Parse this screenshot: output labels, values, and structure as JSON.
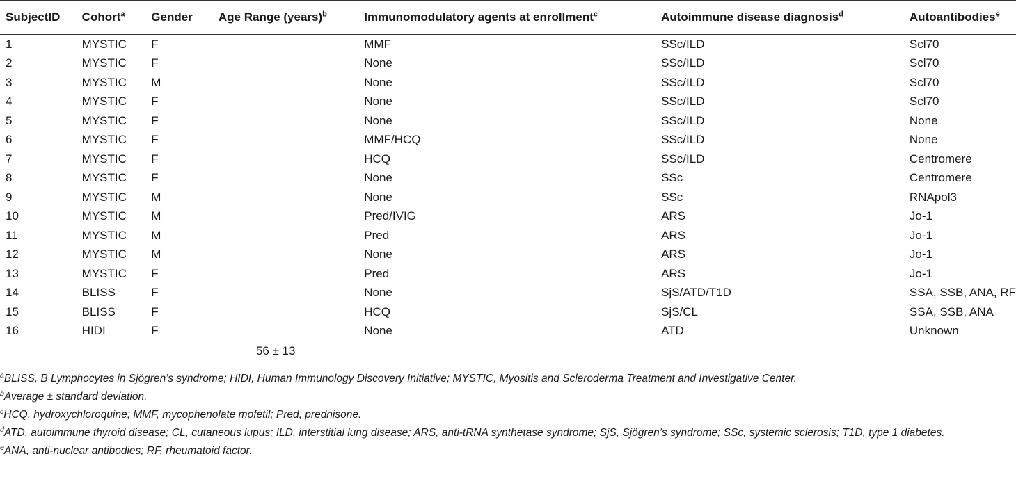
{
  "table": {
    "headers": [
      {
        "label": "SubjectID",
        "sup": ""
      },
      {
        "label": "Cohort",
        "sup": "a"
      },
      {
        "label": "Gender",
        "sup": ""
      },
      {
        "label": "Age Range (years)",
        "sup": "b"
      },
      {
        "label": "Immunomodulatory agents at enrollment",
        "sup": "c"
      },
      {
        "label": "Autoimmune disease diagnosis",
        "sup": "d"
      },
      {
        "label": "Autoantibodies",
        "sup": "e"
      }
    ],
    "rows": [
      [
        "1",
        "MYSTIC",
        "F",
        "",
        "MMF",
        "SSc/ILD",
        "Scl70"
      ],
      [
        "2",
        "MYSTIC",
        "F",
        "",
        "None",
        "SSc/ILD",
        "Scl70"
      ],
      [
        "3",
        "MYSTIC",
        "M",
        "",
        "None",
        "SSc/ILD",
        "Scl70"
      ],
      [
        "4",
        "MYSTIC",
        "F",
        "",
        "None",
        "SSc/ILD",
        "Scl70"
      ],
      [
        "5",
        "MYSTIC",
        "F",
        "",
        "None",
        "SSc/ILD",
        "None"
      ],
      [
        "6",
        "MYSTIC",
        "F",
        "",
        "MMF/HCQ",
        "SSc/ILD",
        "None"
      ],
      [
        "7",
        "MYSTIC",
        "F",
        "",
        "HCQ",
        "SSc/ILD",
        "Centromere"
      ],
      [
        "8",
        "MYSTIC",
        "F",
        "",
        "None",
        "SSc",
        "Centromere"
      ],
      [
        "9",
        "MYSTIC",
        "M",
        "",
        "None",
        "SSc",
        "RNApol3"
      ],
      [
        "10",
        "MYSTIC",
        "M",
        "",
        "Pred/IVIG",
        "ARS",
        "Jo-1"
      ],
      [
        "11",
        "MYSTIC",
        "M",
        "",
        "Pred",
        "ARS",
        "Jo-1"
      ],
      [
        "12",
        "MYSTIC",
        "M",
        "",
        "None",
        "ARS",
        "Jo-1"
      ],
      [
        "13",
        "MYSTIC",
        "F",
        "",
        "Pred",
        "ARS",
        "Jo-1"
      ],
      [
        "14",
        "BLISS",
        "F",
        "",
        "None",
        "SjS/ATD/T1D",
        "SSA, SSB, ANA, RF"
      ],
      [
        "15",
        "BLISS",
        "F",
        "",
        "HCQ",
        "SjS/CL",
        "SSA, SSB, ANA"
      ],
      [
        "16",
        "HIDI",
        "F",
        "",
        "None",
        "ATD",
        "Unknown"
      ]
    ],
    "age_summary": "56 ± 13"
  },
  "footnotes": [
    {
      "mark": "a",
      "text": "BLISS, B Lymphocytes in Sjögren’s syndrome; HIDI, Human Immunology Discovery Initiative; MYSTIC, Myositis and Scleroderma Treatment and Investigative Center."
    },
    {
      "mark": "b",
      "text": "Average ± standard deviation."
    },
    {
      "mark": "c",
      "text": "HCQ, hydroxychloroquine; MMF, mycophenolate mofetil; Pred, prednisone."
    },
    {
      "mark": "d",
      "text": "ATD, autoimmune thyroid disease; CL, cutaneous lupus; ILD, interstitial lung disease; ARS, anti-tRNA synthetase syndrome; SjS, Sjögren’s syndrome; SSc, systemic sclerosis; T1D, type 1 diabetes."
    },
    {
      "mark": "e",
      "text": "ANA, anti-nuclear antibodies; RF, rheumatoid factor."
    }
  ]
}
